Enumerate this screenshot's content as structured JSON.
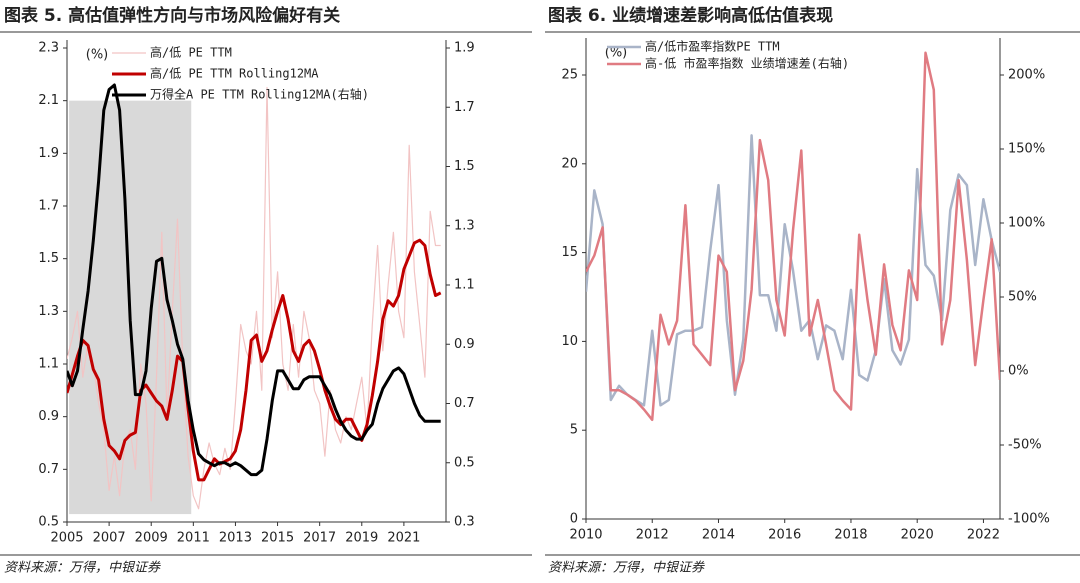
{
  "chart_data": [
    {
      "type": "line",
      "title": "图表 5. 高估值弹性方向与市场风险偏好有关",
      "y_label": "(%)",
      "source": "资料来源：万得，中银证券",
      "legend": "upper center",
      "highlight": {
        "x": [
          2005.1,
          2010.9
        ],
        "y": [
          0.53,
          2.1
        ],
        "color": "#d9d9d9"
      },
      "xlim": [
        2005,
        2023
      ],
      "xticks": [
        2005,
        2007,
        2009,
        2011,
        2013,
        2015,
        2017,
        2019,
        2021
      ],
      "ylim": [
        0.5,
        2.3
      ],
      "yticks": [
        0.5,
        0.7,
        0.9,
        1.1,
        1.3,
        1.5,
        1.7,
        1.9,
        2.1,
        2.3
      ],
      "y2lim": [
        0.3,
        1.9
      ],
      "y2ticks": [
        0.3,
        0.5,
        0.7,
        0.9,
        1.1,
        1.3,
        1.5,
        1.7,
        1.9
      ],
      "x": [
        2005,
        2005.25,
        2005.5,
        2005.75,
        2006,
        2006.25,
        2006.5,
        2006.75,
        2007,
        2007.25,
        2007.5,
        2007.75,
        2008,
        2008.25,
        2008.5,
        2008.75,
        2009,
        2009.25,
        2009.5,
        2009.75,
        2010,
        2010.25,
        2010.5,
        2010.75,
        2011,
        2011.25,
        2011.5,
        2011.75,
        2012,
        2012.25,
        2012.5,
        2012.75,
        2013,
        2013.25,
        2013.5,
        2013.75,
        2014,
        2014.25,
        2014.5,
        2014.75,
        2015,
        2015.25,
        2015.5,
        2015.75,
        2016,
        2016.25,
        2016.5,
        2016.75,
        2017,
        2017.25,
        2017.5,
        2017.75,
        2018,
        2018.25,
        2018.5,
        2018.75,
        2019,
        2019.25,
        2019.5,
        2019.75,
        2020,
        2020.25,
        2020.5,
        2020.75,
        2021,
        2021.25,
        2021.5,
        2021.75,
        2022,
        2022.25,
        2022.5,
        2022.75
      ],
      "series": [
        {
          "name": "高/低 PE TTM",
          "color": "#f2c4c4",
          "width": 1.2,
          "values": [
            1.12,
            1.2,
            1.3,
            1.05,
            1.18,
            1.1,
            0.95,
            0.85,
            0.62,
            0.75,
            0.6,
            0.8,
            0.85,
            0.7,
            1.1,
            0.95,
            0.58,
            1.05,
            1.6,
            0.9,
            1.3,
            1.65,
            1.1,
            0.75,
            0.6,
            0.55,
            0.7,
            0.8,
            0.72,
            0.68,
            0.78,
            0.7,
            0.95,
            1.25,
            1.15,
            1.1,
            1.3,
            1.0,
            2.15,
            1.2,
            1.45,
            1.1,
            1.0,
            1.25,
            1.05,
            1.3,
            1.2,
            1.0,
            0.95,
            0.75,
            1.0,
            0.85,
            0.8,
            0.9,
            0.85,
            0.95,
            1.05,
            0.85,
            1.25,
            1.55,
            1.15,
            1.4,
            1.6,
            1.3,
            1.2,
            1.93,
            1.45,
            1.25,
            1.05,
            1.68,
            1.55,
            1.55
          ]
        },
        {
          "name": "高/低 PE TTM Rolling12MA",
          "color": "#c00000",
          "width": 3,
          "values": [
            0.99,
            1.06,
            1.13,
            1.19,
            1.17,
            1.08,
            1.04,
            0.89,
            0.79,
            0.77,
            0.74,
            0.81,
            0.83,
            0.84,
            1.0,
            1.02,
            0.99,
            0.96,
            0.94,
            0.89,
            1.0,
            1.13,
            1.11,
            0.93,
            0.77,
            0.66,
            0.66,
            0.7,
            0.74,
            0.72,
            0.73,
            0.74,
            0.77,
            0.85,
            1.0,
            1.19,
            1.21,
            1.11,
            1.15,
            1.23,
            1.3,
            1.36,
            1.27,
            1.15,
            1.11,
            1.17,
            1.19,
            1.15,
            1.08,
            1.0,
            0.94,
            0.89,
            0.87,
            0.89,
            0.89,
            0.85,
            0.81,
            0.87,
            0.98,
            1.11,
            1.27,
            1.34,
            1.32,
            1.36,
            1.46,
            1.51,
            1.56,
            1.57,
            1.55,
            1.44,
            1.36,
            1.37
          ]
        },
        {
          "name": "万得全A PE TTM Rolling12MA(右轴)",
          "color": "#000000",
          "width": 3,
          "axis": "y2",
          "values": [
            0.81,
            0.76,
            0.81,
            0.95,
            1.08,
            1.25,
            1.45,
            1.69,
            1.76,
            1.775,
            1.69,
            1.39,
            0.98,
            0.73,
            0.73,
            0.81,
            1.02,
            1.18,
            1.19,
            1.05,
            0.98,
            0.9,
            0.85,
            0.71,
            0.61,
            0.53,
            0.51,
            0.5,
            0.49,
            0.5,
            0.5,
            0.49,
            0.5,
            0.49,
            0.475,
            0.46,
            0.46,
            0.475,
            0.58,
            0.71,
            0.81,
            0.81,
            0.78,
            0.75,
            0.75,
            0.78,
            0.79,
            0.79,
            0.79,
            0.76,
            0.73,
            0.68,
            0.64,
            0.61,
            0.59,
            0.58,
            0.58,
            0.61,
            0.63,
            0.7,
            0.75,
            0.78,
            0.81,
            0.82,
            0.8,
            0.75,
            0.7,
            0.66,
            0.64,
            0.64,
            0.64,
            0.64
          ]
        }
      ]
    },
    {
      "type": "line",
      "title": "图表 6. 业绩增速差影响高低估值表现",
      "y_label": "(%)",
      "source": "资料来源：万得，中银证券",
      "legend": "upper center",
      "xlim": [
        2010,
        2022.5
      ],
      "xticks": [
        2010,
        2012,
        2014,
        2016,
        2018,
        2020,
        2022
      ],
      "ylim": [
        0,
        25
      ],
      "yticks": [
        0,
        5,
        10,
        15,
        20,
        25
      ],
      "y2lim": [
        -100,
        200
      ],
      "y2ticks": [
        {
          "value": -100,
          "label": "-100%"
        },
        {
          "value": -50,
          "label": "-50%"
        },
        {
          "value": 0,
          "label": "0%"
        },
        {
          "value": 50,
          "label": "50%"
        },
        {
          "value": 100,
          "label": "100%"
        },
        {
          "value": 150,
          "label": "150%"
        },
        {
          "value": 200,
          "label": "200%"
        }
      ],
      "x": [
        2010,
        2010.25,
        2010.5,
        2010.75,
        2011,
        2011.25,
        2011.5,
        2011.75,
        2012,
        2012.25,
        2012.5,
        2012.75,
        2013,
        2013.25,
        2013.5,
        2013.75,
        2014,
        2014.25,
        2014.5,
        2014.75,
        2015,
        2015.25,
        2015.5,
        2015.75,
        2016,
        2016.25,
        2016.5,
        2016.75,
        2017,
        2017.25,
        2017.5,
        2017.75,
        2018,
        2018.25,
        2018.5,
        2018.75,
        2019,
        2019.25,
        2019.5,
        2019.75,
        2020,
        2020.25,
        2020.5,
        2020.75,
        2021,
        2021.25,
        2021.5,
        2021.75,
        2022,
        2022.25,
        2022.5
      ],
      "series": [
        {
          "name": "高/低市盈率指数PE TTM",
          "color": "#a9b4c8",
          "width": 2.5,
          "values": [
            12.8,
            18.5,
            16.6,
            6.7,
            7.5,
            7.0,
            6.7,
            6.4,
            10.6,
            6.4,
            6.7,
            10.4,
            10.6,
            10.6,
            10.8,
            15.1,
            18.8,
            11.2,
            7.0,
            10.1,
            21.6,
            12.6,
            12.6,
            10.6,
            16.6,
            14.0,
            10.6,
            11.2,
            9.0,
            10.9,
            10.6,
            9.0,
            12.9,
            8.1,
            7.8,
            9.5,
            13.5,
            9.5,
            8.7,
            10.1,
            19.7,
            14.3,
            13.7,
            11.2,
            17.4,
            19.4,
            18.8,
            14.3,
            18.0,
            15.7,
            13.9
          ]
        },
        {
          "name": "高-低 市盈率指数 业绩增速差(右轴)",
          "color": "#e07b82",
          "width": 2.5,
          "axis": "y2",
          "values": [
            67,
            78,
            97,
            -13,
            -13,
            -16,
            -20,
            -26,
            -33,
            38,
            18,
            34,
            112,
            18,
            11,
            4,
            78,
            67,
            -13,
            7,
            55,
            156,
            129,
            48,
            24,
            95,
            149,
            24,
            48,
            18,
            -13,
            -20,
            -26,
            92,
            48,
            11,
            72,
            31,
            14,
            68,
            48,
            215,
            190,
            18,
            48,
            129,
            75,
            4,
            48,
            89,
            -6
          ]
        }
      ]
    }
  ]
}
